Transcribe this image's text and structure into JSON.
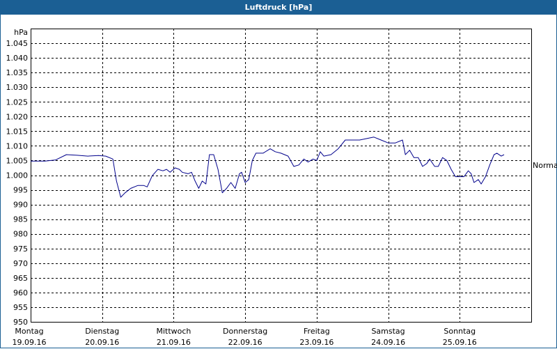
{
  "title": "Luftdruck [hPa]",
  "chart_data": {
    "type": "line",
    "title": "Luftdruck [hPa]",
    "ylabel": "hPa",
    "ylim": [
      950,
      1050
    ],
    "yticks": [
      950,
      955,
      960,
      965,
      970,
      975,
      980,
      985,
      990,
      995,
      1000,
      1005,
      1010,
      1015,
      1020,
      1025,
      1030,
      1035,
      1040,
      1045
    ],
    "ytick_labels": [
      "950",
      "955",
      "960",
      "965",
      "970",
      "975",
      "980",
      "985",
      "990",
      "995",
      "1.000",
      "1.005",
      "1.010",
      "1.015",
      "1.020",
      "1.025",
      "1.030",
      "1.035",
      "1.040",
      "1.045"
    ],
    "xlim": [
      0,
      7
    ],
    "xticks": [
      {
        "day": "Montag",
        "date": "19.09.16"
      },
      {
        "day": "Dienstag",
        "date": "20.09.16"
      },
      {
        "day": "Mittwoch",
        "date": "21.09.16"
      },
      {
        "day": "Donnerstag",
        "date": "22.09.16"
      },
      {
        "day": "Freitag",
        "date": "23.09.16"
      },
      {
        "day": "Samstag",
        "date": "24.09.16"
      },
      {
        "day": "Sonntag",
        "date": "25.09.16"
      }
    ],
    "grid": true,
    "reference_line": {
      "label": "Normal",
      "value": 1003.5
    },
    "series": [
      {
        "color": "#00008b",
        "points": [
          [
            0.0,
            1004.8
          ],
          [
            0.2,
            1004.8
          ],
          [
            0.35,
            1005.2
          ],
          [
            0.5,
            1007.0
          ],
          [
            0.65,
            1006.8
          ],
          [
            0.8,
            1006.5
          ],
          [
            0.95,
            1006.7
          ],
          [
            1.05,
            1006.5
          ],
          [
            1.15,
            1005.5
          ],
          [
            1.2,
            998.0
          ],
          [
            1.26,
            992.5
          ],
          [
            1.32,
            994.0
          ],
          [
            1.4,
            995.5
          ],
          [
            1.5,
            996.5
          ],
          [
            1.58,
            996.5
          ],
          [
            1.63,
            996.0
          ],
          [
            1.7,
            999.8
          ],
          [
            1.78,
            1002.0
          ],
          [
            1.85,
            1001.5
          ],
          [
            1.9,
            1002.0
          ],
          [
            1.95,
            1001.0
          ],
          [
            2.02,
            1002.5
          ],
          [
            2.08,
            1002.0
          ],
          [
            2.12,
            1001.0
          ],
          [
            2.2,
            1000.5
          ],
          [
            2.25,
            1001.0
          ],
          [
            2.3,
            998.0
          ],
          [
            2.35,
            995.5
          ],
          [
            2.4,
            998.0
          ],
          [
            2.45,
            997.0
          ],
          [
            2.5,
            1007.0
          ],
          [
            2.56,
            1007.0
          ],
          [
            2.62,
            1002.0
          ],
          [
            2.68,
            994.0
          ],
          [
            2.74,
            995.5
          ],
          [
            2.8,
            997.5
          ],
          [
            2.86,
            995.5
          ],
          [
            2.92,
            1000.5
          ],
          [
            2.95,
            1001.0
          ],
          [
            3.0,
            997.5
          ],
          [
            3.05,
            998.5
          ],
          [
            3.1,
            1005.0
          ],
          [
            3.15,
            1007.5
          ],
          [
            3.25,
            1007.5
          ],
          [
            3.35,
            1009.0
          ],
          [
            3.42,
            1008.0
          ],
          [
            3.5,
            1007.5
          ],
          [
            3.6,
            1006.5
          ],
          [
            3.68,
            1003.0
          ],
          [
            3.75,
            1003.5
          ],
          [
            3.82,
            1005.5
          ],
          [
            3.88,
            1004.5
          ],
          [
            3.95,
            1005.5
          ],
          [
            4.0,
            1005.0
          ],
          [
            4.05,
            1008.0
          ],
          [
            4.1,
            1006.5
          ],
          [
            4.2,
            1007.0
          ],
          [
            4.3,
            1009.0
          ],
          [
            4.4,
            1012.0
          ],
          [
            4.5,
            1012.0
          ],
          [
            4.6,
            1012.0
          ],
          [
            4.7,
            1012.5
          ],
          [
            4.8,
            1013.0
          ],
          [
            4.9,
            1012.0
          ],
          [
            5.0,
            1011.0
          ],
          [
            5.1,
            1011.0
          ],
          [
            5.2,
            1012.0
          ],
          [
            5.24,
            1007.0
          ],
          [
            5.3,
            1008.5
          ],
          [
            5.36,
            1006.0
          ],
          [
            5.42,
            1006.0
          ],
          [
            5.48,
            1003.0
          ],
          [
            5.54,
            1004.0
          ],
          [
            5.58,
            1005.5
          ],
          [
            5.65,
            1003.0
          ],
          [
            5.7,
            1003.0
          ],
          [
            5.76,
            1006.0
          ],
          [
            5.82,
            1005.0
          ],
          [
            5.88,
            1002.0
          ],
          [
            5.94,
            999.5
          ],
          [
            6.0,
            999.5
          ],
          [
            6.06,
            999.5
          ],
          [
            6.12,
            1001.5
          ],
          [
            6.16,
            1000.5
          ],
          [
            6.2,
            997.5
          ],
          [
            6.26,
            998.5
          ],
          [
            6.3,
            997.0
          ],
          [
            6.36,
            999.5
          ],
          [
            6.42,
            1003.5
          ],
          [
            6.48,
            1007.0
          ],
          [
            6.52,
            1007.5
          ],
          [
            6.58,
            1006.5
          ],
          [
            6.62,
            1007.0
          ]
        ]
      }
    ]
  }
}
